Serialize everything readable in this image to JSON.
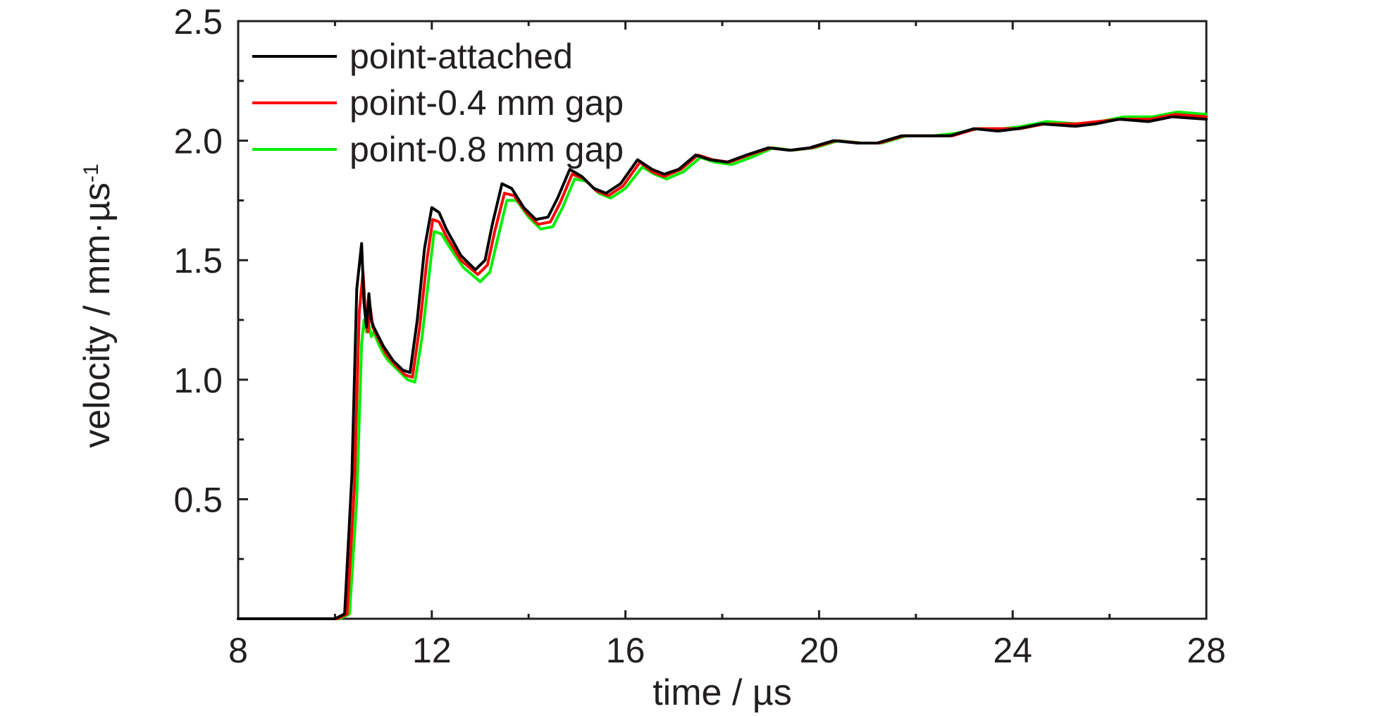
{
  "chart_data": {
    "type": "line",
    "title": "",
    "xlabel": "time / µs",
    "ylabel": "velocity / mm·µs",
    "ylabel_superscript": "-1",
    "xlim": [
      8,
      28
    ],
    "ylim": [
      0,
      2.5
    ],
    "x_ticks": [
      8,
      12,
      16,
      20,
      24,
      28
    ],
    "x_tick_labels": [
      "8",
      "12",
      "16",
      "20",
      "24",
      "28"
    ],
    "y_ticks": [
      0.5,
      1.0,
      1.5,
      2.0,
      2.5
    ],
    "y_tick_labels": [
      "0.5",
      "1.0",
      "1.5",
      "2.0",
      "2.5"
    ],
    "grid": false,
    "legend_position": "top-left",
    "series": [
      {
        "name": "point-attached",
        "color": "#000000",
        "x": [
          8.0,
          10.0,
          10.2,
          10.35,
          10.45,
          10.55,
          10.6,
          10.65,
          10.7,
          10.75,
          10.8,
          10.9,
          11.0,
          11.2,
          11.4,
          11.55,
          11.7,
          11.85,
          12.0,
          12.15,
          12.3,
          12.6,
          12.9,
          13.1,
          13.25,
          13.45,
          13.65,
          13.9,
          14.15,
          14.4,
          14.6,
          14.85,
          15.1,
          15.35,
          15.6,
          15.9,
          16.25,
          16.55,
          16.8,
          17.1,
          17.45,
          17.75,
          18.1,
          18.5,
          18.95,
          19.4,
          19.8,
          20.3,
          20.8,
          21.2,
          21.7,
          22.3,
          22.7,
          23.2,
          23.7,
          24.1,
          24.6,
          25.3,
          25.7,
          26.2,
          26.8,
          27.3,
          28.0
        ],
        "y": [
          0,
          0,
          0.02,
          0.6,
          1.38,
          1.57,
          1.32,
          1.22,
          1.36,
          1.25,
          1.22,
          1.18,
          1.14,
          1.08,
          1.04,
          1.03,
          1.25,
          1.55,
          1.72,
          1.7,
          1.63,
          1.52,
          1.46,
          1.5,
          1.65,
          1.82,
          1.8,
          1.72,
          1.67,
          1.68,
          1.76,
          1.88,
          1.85,
          1.8,
          1.78,
          1.82,
          1.92,
          1.88,
          1.86,
          1.88,
          1.94,
          1.92,
          1.91,
          1.94,
          1.97,
          1.96,
          1.97,
          2.0,
          1.99,
          1.99,
          2.02,
          2.02,
          2.02,
          2.05,
          2.04,
          2.05,
          2.07,
          2.06,
          2.07,
          2.09,
          2.08,
          2.1,
          2.09
        ]
      },
      {
        "name": "point-0.4 mm gap",
        "color": "#ff0000",
        "x": [
          8.0,
          10.05,
          10.25,
          10.4,
          10.5,
          10.58,
          10.63,
          10.68,
          10.73,
          10.78,
          10.85,
          10.95,
          11.05,
          11.25,
          11.45,
          11.6,
          11.75,
          11.9,
          12.02,
          12.15,
          12.3,
          12.6,
          12.95,
          13.15,
          13.3,
          13.5,
          13.7,
          13.95,
          14.2,
          14.45,
          14.65,
          14.9,
          15.15,
          15.4,
          15.65,
          15.95,
          16.3,
          16.55,
          16.8,
          17.15,
          17.5,
          17.8,
          18.15,
          18.55,
          19.0,
          19.4,
          19.85,
          20.35,
          20.85,
          21.25,
          21.75,
          22.3,
          22.75,
          23.25,
          23.75,
          24.15,
          24.65,
          25.3,
          25.75,
          26.25,
          26.85,
          27.35,
          28.0
        ],
        "y": [
          0,
          0,
          0.02,
          0.55,
          1.28,
          1.45,
          1.28,
          1.2,
          1.3,
          1.22,
          1.19,
          1.15,
          1.11,
          1.06,
          1.02,
          1.01,
          1.22,
          1.5,
          1.67,
          1.66,
          1.6,
          1.5,
          1.44,
          1.48,
          1.62,
          1.78,
          1.77,
          1.7,
          1.65,
          1.66,
          1.74,
          1.86,
          1.84,
          1.79,
          1.77,
          1.81,
          1.91,
          1.87,
          1.85,
          1.88,
          1.94,
          1.92,
          1.91,
          1.94,
          1.97,
          1.96,
          1.97,
          2.0,
          1.99,
          1.99,
          2.02,
          2.02,
          2.02,
          2.05,
          2.05,
          2.05,
          2.07,
          2.07,
          2.08,
          2.09,
          2.09,
          2.11,
          2.1
        ]
      },
      {
        "name": "point-0.8 mm gap",
        "color": "#00ee00",
        "x": [
          8.0,
          10.1,
          10.3,
          10.45,
          10.55,
          10.6,
          10.65,
          10.7,
          10.75,
          10.8,
          10.9,
          11.0,
          11.1,
          11.3,
          11.5,
          11.65,
          11.8,
          11.95,
          12.05,
          12.2,
          12.35,
          12.65,
          13.0,
          13.2,
          13.35,
          13.55,
          13.75,
          14.0,
          14.25,
          14.5,
          14.7,
          14.95,
          15.2,
          15.45,
          15.7,
          16.0,
          16.35,
          16.6,
          16.85,
          17.2,
          17.55,
          17.85,
          18.2,
          18.6,
          19.05,
          19.45,
          19.9,
          20.4,
          20.9,
          21.3,
          21.8,
          22.35,
          22.8,
          23.3,
          23.8,
          24.2,
          24.7,
          25.35,
          25.8,
          26.3,
          26.9,
          27.4,
          28.0
        ],
        "y": [
          0,
          0,
          0.02,
          0.5,
          1.15,
          1.25,
          1.2,
          1.23,
          1.18,
          1.2,
          1.15,
          1.11,
          1.08,
          1.04,
          1.0,
          0.99,
          1.18,
          1.45,
          1.62,
          1.61,
          1.56,
          1.47,
          1.41,
          1.45,
          1.58,
          1.75,
          1.75,
          1.68,
          1.63,
          1.64,
          1.72,
          1.84,
          1.83,
          1.78,
          1.76,
          1.8,
          1.89,
          1.86,
          1.84,
          1.87,
          1.93,
          1.91,
          1.9,
          1.93,
          1.97,
          1.96,
          1.97,
          2.0,
          1.99,
          1.99,
          2.02,
          2.02,
          2.03,
          2.05,
          2.05,
          2.06,
          2.08,
          2.07,
          2.08,
          2.1,
          2.1,
          2.12,
          2.11
        ]
      }
    ]
  }
}
